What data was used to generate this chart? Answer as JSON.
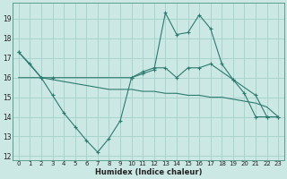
{
  "bg_color": "#cce8e4",
  "grid_color": "#a8d4ce",
  "line_color": "#2d7a6e",
  "xlabel": "Humidex (Indice chaleur)",
  "xlim": [
    -0.5,
    23.5
  ],
  "ylim": [
    11.8,
    19.8
  ],
  "yticks": [
    12,
    13,
    14,
    15,
    16,
    17,
    18,
    19
  ],
  "xticks": [
    0,
    1,
    2,
    3,
    4,
    5,
    6,
    7,
    8,
    9,
    10,
    11,
    12,
    13,
    14,
    15,
    16,
    17,
    18,
    19,
    20,
    21,
    22,
    23
  ],
  "line1_x": [
    0,
    1,
    2,
    3,
    4,
    5,
    6,
    7,
    8,
    9,
    10,
    11,
    12,
    13,
    14,
    15,
    16,
    17,
    18,
    19,
    20,
    21,
    22,
    23
  ],
  "line1_y": [
    17.3,
    16.7,
    16.0,
    15.1,
    14.2,
    13.5,
    12.8,
    12.2,
    12.9,
    13.8,
    16.0,
    16.2,
    16.4,
    19.3,
    18.2,
    18.3,
    19.2,
    18.5,
    16.7,
    15.9,
    15.2,
    14.0,
    14.0,
    14.0
  ],
  "line2_x": [
    0,
    1,
    2,
    3,
    4,
    5,
    6,
    7,
    8,
    9,
    10,
    11,
    12,
    13,
    14,
    15,
    16,
    17,
    18,
    19,
    20,
    21,
    22,
    23
  ],
  "line2_y": [
    16.0,
    16.0,
    16.0,
    15.9,
    15.8,
    15.7,
    15.6,
    15.5,
    15.4,
    15.4,
    15.4,
    15.3,
    15.3,
    15.2,
    15.2,
    15.1,
    15.1,
    15.0,
    15.0,
    14.9,
    14.8,
    14.7,
    14.5,
    14.0
  ],
  "line3_x": [
    0,
    2,
    3,
    10,
    11,
    12,
    13,
    14,
    15,
    16,
    17,
    19,
    21,
    22,
    23
  ],
  "line3_y": [
    17.3,
    16.0,
    16.0,
    16.0,
    16.3,
    16.5,
    16.5,
    16.0,
    16.5,
    16.5,
    16.7,
    15.9,
    15.1,
    14.0,
    14.0
  ]
}
